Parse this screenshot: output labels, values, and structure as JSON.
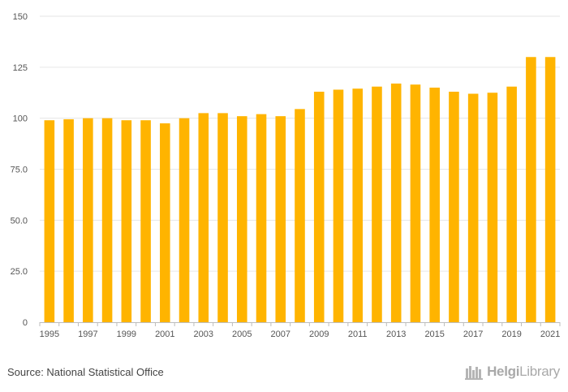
{
  "chart_data": {
    "type": "bar",
    "title": "",
    "xlabel": "",
    "ylabel": "",
    "categories": [
      "1995",
      "1996",
      "1997",
      "1998",
      "1999",
      "2000",
      "2001",
      "2002",
      "2003",
      "2004",
      "2005",
      "2006",
      "2007",
      "2008",
      "2009",
      "2010",
      "2011",
      "2012",
      "2013",
      "2014",
      "2015",
      "2016",
      "2017",
      "2018",
      "2019",
      "2020",
      "2021"
    ],
    "values": [
      99.0,
      99.5,
      100.0,
      100.0,
      99.0,
      99.0,
      97.5,
      100.0,
      102.5,
      102.5,
      101.0,
      102.0,
      101.0,
      104.5,
      113.0,
      114.0,
      114.5,
      115.5,
      117.0,
      116.5,
      115.0,
      113.0,
      112.0,
      112.5,
      115.5,
      130.0,
      130.0
    ],
    "x_tick_labels": [
      "1995",
      "1997",
      "1999",
      "2001",
      "2003",
      "2005",
      "2007",
      "2009",
      "2011",
      "2013",
      "2015",
      "2017",
      "2019",
      "2021"
    ],
    "y_ticks": [
      0,
      25,
      50,
      75,
      100,
      125,
      150
    ],
    "y_tick_labels": [
      "0",
      "25.0",
      "50.0",
      "75.0",
      "100",
      "125",
      "150"
    ],
    "ylim": [
      0,
      150
    ],
    "bar_color": "#FFB400",
    "grid": true,
    "legend": "none"
  },
  "footer": {
    "source": "Source: National Statistical Office",
    "logo_part1": "Helgi",
    "logo_part2": "Library",
    "logo_icon": "books-icon"
  }
}
